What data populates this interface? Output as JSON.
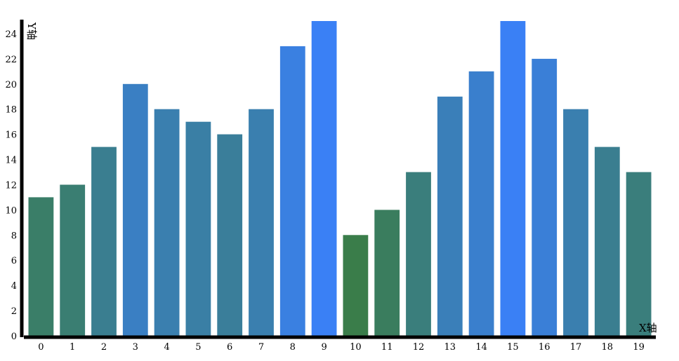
{
  "chart_data": {
    "type": "bar",
    "categories": [
      "0",
      "1",
      "2",
      "3",
      "4",
      "5",
      "6",
      "7",
      "8",
      "9",
      "10",
      "11",
      "12",
      "13",
      "14",
      "15",
      "16",
      "17",
      "18",
      "19"
    ],
    "values": [
      11,
      12,
      15,
      20,
      18,
      17,
      16,
      18,
      23,
      25,
      8,
      10,
      13,
      19,
      21,
      25,
      22,
      18,
      15,
      13
    ],
    "xlabel": "X轴",
    "ylabel": "Y轴",
    "ylim": [
      0,
      25
    ],
    "yticks": [
      0,
      2,
      4,
      6,
      8,
      10,
      12,
      14,
      16,
      18,
      20,
      22,
      24
    ],
    "grid": false,
    "legend": "none",
    "colors": {
      "low": "#3a7d4a",
      "high": "#3a80f5",
      "axis": "#000000"
    }
  }
}
